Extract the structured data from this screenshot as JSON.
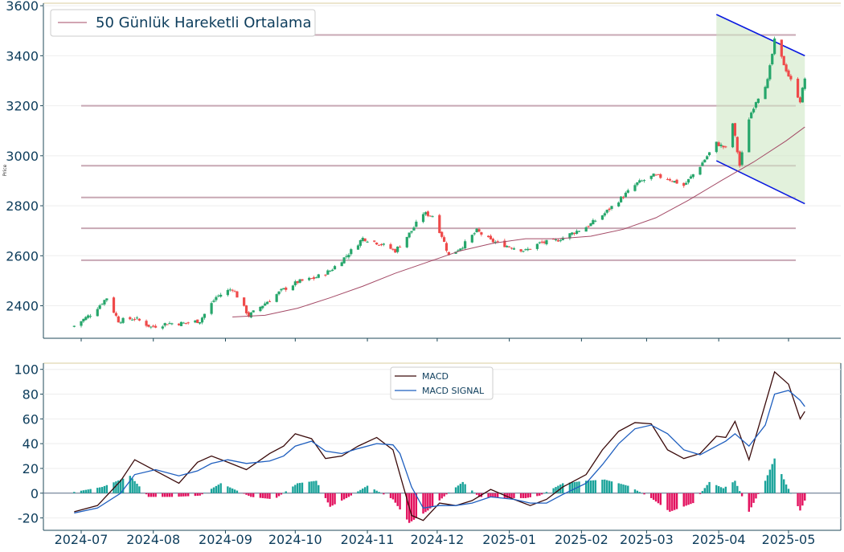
{
  "chart_data": [
    {
      "type": "candlestick",
      "ylabel": "Price",
      "ylim": [
        2270,
        3610
      ],
      "y_ticks": [
        2400,
        2600,
        2800,
        3000,
        3200,
        3400,
        3600
      ],
      "x_ticks": [
        "2024-07",
        "2024-08",
        "2024-09",
        "2024-10",
        "2024-11",
        "2024-12",
        "2025-01",
        "2025-02",
        "2025-03",
        "2025-04",
        "2025-05"
      ],
      "legend": {
        "position": "top-left",
        "entries": [
          "50 Günlük Hareketli Ortalama"
        ]
      },
      "grid": true,
      "colors": {
        "up": "#26a66b",
        "down": "#ef4a4a",
        "ma": "#a44a66",
        "levels": "#c8a8b4",
        "channel_line": "#0a1ae0",
        "channel_fill": "#cfe8c4"
      },
      "horizontal_levels": [
        3483,
        3200,
        2960,
        2833,
        2710,
        2582
      ],
      "channel": {
        "start_date": "2025-03-31",
        "end_date": "2025-05-08",
        "upper": [
          3565,
          3400
        ],
        "lower": [
          2980,
          2808
        ]
      },
      "price_keypoints": {
        "dates": [
          "2024-06-28",
          "2024-07-05",
          "2024-07-12",
          "2024-07-17",
          "2024-07-24",
          "2024-07-31",
          "2024-08-07",
          "2024-08-14",
          "2024-08-21",
          "2024-08-28",
          "2024-09-04",
          "2024-09-11",
          "2024-09-18",
          "2024-09-25",
          "2024-10-02",
          "2024-10-09",
          "2024-10-16",
          "2024-10-23",
          "2024-10-30",
          "2024-11-06",
          "2024-11-13",
          "2024-11-20",
          "2024-11-25",
          "2024-11-29",
          "2024-12-03",
          "2024-12-06",
          "2024-12-12",
          "2024-12-18",
          "2024-12-24",
          "2024-12-31",
          "2025-01-08",
          "2025-01-14",
          "2025-01-21",
          "2025-01-28",
          "2025-02-04",
          "2025-02-11",
          "2025-02-18",
          "2025-02-25",
          "2025-03-04",
          "2025-03-10",
          "2025-03-17",
          "2025-03-24",
          "2025-03-31",
          "2025-04-04",
          "2025-04-07",
          "2025-04-10",
          "2025-04-14",
          "2025-04-17",
          "2025-04-22",
          "2025-04-25",
          "2025-05-01",
          "2025-05-06",
          "2025-05-08"
        ],
        "close": [
          2320,
          2365,
          2432,
          2340,
          2350,
          2315,
          2330,
          2330,
          2340,
          2435,
          2470,
          2360,
          2410,
          2460,
          2495,
          2510,
          2540,
          2600,
          2670,
          2650,
          2620,
          2700,
          2770,
          2760,
          2680,
          2600,
          2640,
          2700,
          2660,
          2640,
          2620,
          2650,
          2660,
          2690,
          2720,
          2770,
          2830,
          2890,
          2920,
          2910,
          2880,
          2960,
          3050,
          3030,
          3130,
          2960,
          3150,
          3220,
          3300,
          3460,
          3320,
          3220,
          3310
        ]
      },
      "ma_keypoints": {
        "dates": [
          "2024-09-04",
          "2024-09-18",
          "2024-10-02",
          "2024-10-16",
          "2024-10-30",
          "2024-11-13",
          "2024-11-27",
          "2024-12-11",
          "2024-12-25",
          "2025-01-08",
          "2025-01-22",
          "2025-02-05",
          "2025-02-19",
          "2025-03-05",
          "2025-03-19",
          "2025-04-02",
          "2025-04-16",
          "2025-04-30",
          "2025-05-08"
        ],
        "values": [
          2355,
          2362,
          2390,
          2432,
          2478,
          2530,
          2575,
          2620,
          2650,
          2668,
          2668,
          2678,
          2706,
          2752,
          2822,
          2900,
          2975,
          3060,
          3115
        ]
      }
    },
    {
      "type": "line",
      "ylim": [
        -30,
        105
      ],
      "y_ticks": [
        -20,
        0,
        20,
        40,
        60,
        80,
        100
      ],
      "x_ticks": [
        "2024-07",
        "2024-08",
        "2024-09",
        "2024-10",
        "2024-11",
        "2024-12",
        "2025-01",
        "2025-02",
        "2025-03",
        "2025-04",
        "2025-05"
      ],
      "legend": {
        "position": "top-center",
        "entries": [
          "MACD",
          "MACD SIGNAL"
        ]
      },
      "grid": true,
      "colors": {
        "macd": "#3a0a0a",
        "signal": "#1f5fbf",
        "hist_pos": "#1aa39a",
        "hist_neg": "#e3125f"
      },
      "series": [
        {
          "name": "MACD",
          "dates": [
            "2024-06-28",
            "2024-07-08",
            "2024-07-18",
            "2024-07-24",
            "2024-08-02",
            "2024-08-12",
            "2024-08-20",
            "2024-08-26",
            "2024-09-02",
            "2024-09-10",
            "2024-09-20",
            "2024-09-26",
            "2024-10-01",
            "2024-10-08",
            "2024-10-14",
            "2024-10-21",
            "2024-10-28",
            "2024-11-05",
            "2024-11-12",
            "2024-11-15",
            "2024-11-20",
            "2024-11-25",
            "2024-12-02",
            "2024-12-09",
            "2024-12-16",
            "2024-12-24",
            "2025-01-03",
            "2025-01-10",
            "2025-01-17",
            "2025-01-24",
            "2025-02-03",
            "2025-02-10",
            "2025-02-17",
            "2025-02-24",
            "2025-03-03",
            "2025-03-10",
            "2025-03-17",
            "2025-03-24",
            "2025-03-31",
            "2025-04-04",
            "2025-04-08",
            "2025-04-14",
            "2025-04-21",
            "2025-04-25",
            "2025-05-01",
            "2025-05-06",
            "2025-05-08"
          ],
          "values": [
            -15,
            -10,
            10,
            27,
            18,
            8,
            25,
            30,
            25,
            19,
            32,
            38,
            48,
            44,
            28,
            30,
            38,
            45,
            35,
            15,
            -18,
            -22,
            -8,
            -10,
            -6,
            3,
            -5,
            -10,
            -5,
            5,
            15,
            35,
            50,
            57,
            56,
            35,
            28,
            32,
            46,
            45,
            58,
            27,
            72,
            98,
            88,
            60,
            66
          ]
        },
        {
          "name": "MACD SIGNAL",
          "dates": [
            "2024-06-28",
            "2024-07-08",
            "2024-07-18",
            "2024-07-24",
            "2024-08-02",
            "2024-08-12",
            "2024-08-20",
            "2024-08-26",
            "2024-09-02",
            "2024-09-10",
            "2024-09-20",
            "2024-09-26",
            "2024-10-01",
            "2024-10-08",
            "2024-10-14",
            "2024-10-21",
            "2024-10-28",
            "2024-11-05",
            "2024-11-12",
            "2024-11-15",
            "2024-11-20",
            "2024-11-25",
            "2024-12-02",
            "2024-12-09",
            "2024-12-16",
            "2024-12-24",
            "2025-01-03",
            "2025-01-10",
            "2025-01-17",
            "2025-01-24",
            "2025-02-03",
            "2025-02-10",
            "2025-02-17",
            "2025-02-24",
            "2025-03-03",
            "2025-03-10",
            "2025-03-17",
            "2025-03-24",
            "2025-03-31",
            "2025-04-04",
            "2025-04-08",
            "2025-04-14",
            "2025-04-21",
            "2025-04-25",
            "2025-05-01",
            "2025-05-06",
            "2025-05-08"
          ],
          "values": [
            -16,
            -12,
            0,
            15,
            19,
            14,
            18,
            24,
            27,
            24,
            26,
            30,
            38,
            42,
            34,
            32,
            36,
            40,
            39,
            32,
            5,
            -12,
            -10,
            -10,
            -8,
            -3,
            -5,
            -8,
            -8,
            -1,
            8,
            23,
            40,
            52,
            55,
            48,
            35,
            31,
            38,
            42,
            48,
            38,
            55,
            80,
            83,
            75,
            70
          ]
        }
      ],
      "histogram_keypoints": {
        "dates": [
          "2024-06-28",
          "2024-07-10",
          "2024-07-22",
          "2024-07-30",
          "2024-08-10",
          "2024-08-21",
          "2024-08-30",
          "2024-09-12",
          "2024-09-22",
          "2024-10-02",
          "2024-10-10",
          "2024-10-16",
          "2024-10-24",
          "2024-11-01",
          "2024-11-12",
          "2024-11-19",
          "2024-11-27",
          "2024-12-05",
          "2024-12-12",
          "2024-12-19",
          "2024-12-31",
          "2025-01-08",
          "2025-01-14",
          "2025-01-24",
          "2025-02-03",
          "2025-02-11",
          "2025-02-21",
          "2025-03-03",
          "2025-03-11",
          "2025-03-21",
          "2025-03-28",
          "2025-04-03",
          "2025-04-08",
          "2025-04-14",
          "2025-04-21",
          "2025-04-25",
          "2025-04-30",
          "2025-05-06",
          "2025-05-08"
        ],
        "values": [
          1,
          5,
          14,
          -3,
          -3,
          -2,
          8,
          -3,
          -5,
          8,
          10,
          -11,
          -3,
          6,
          -5,
          -24,
          -14,
          -1,
          9,
          -3,
          -4,
          -4,
          -2,
          8,
          10,
          11,
          6,
          -4,
          -15,
          -8,
          9,
          4,
          10,
          -15,
          10,
          28,
          7,
          -14,
          -6
        ]
      }
    }
  ]
}
